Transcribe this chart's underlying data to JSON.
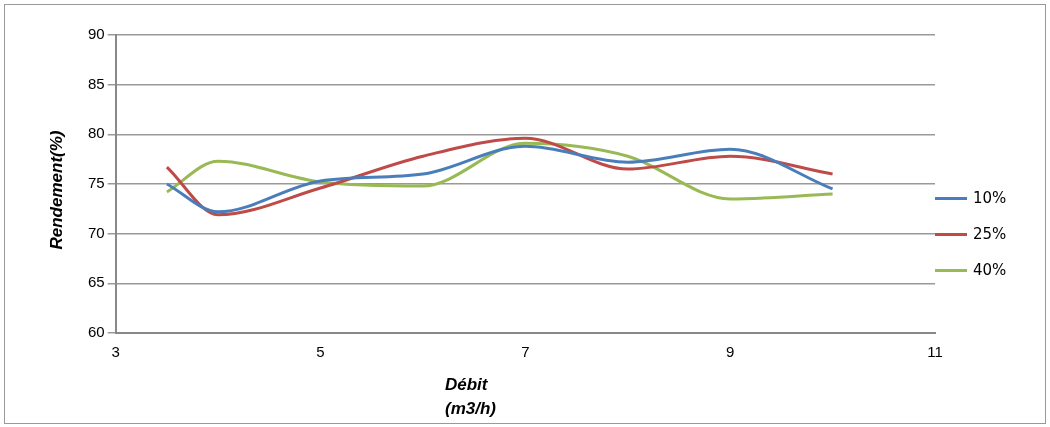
{
  "chart_data": {
    "type": "line",
    "xlabel": "Débit (m3/h)",
    "ylabel": "Rendement(%)",
    "x": [
      3.5,
      4,
      5,
      6,
      7,
      8,
      9,
      10
    ],
    "series": [
      {
        "name": "10%",
        "color": "#4a7ebb",
        "values": [
          75,
          72.2,
          75.3,
          76,
          78.8,
          77.2,
          78.5,
          74.5
        ]
      },
      {
        "name": "25%",
        "color": "#be4b48",
        "values": [
          76.7,
          71.9,
          74.6,
          77.8,
          79.6,
          76.5,
          77.8,
          76
        ]
      },
      {
        "name": "40%",
        "color": "#98b954",
        "values": [
          74.2,
          77.3,
          75.2,
          74.8,
          79.1,
          77.8,
          73.5,
          74
        ]
      }
    ],
    "xlim": [
      3,
      11
    ],
    "xticks": [
      3,
      5,
      7,
      9,
      11
    ],
    "ylim": [
      60,
      90
    ],
    "yticks": [
      60,
      65,
      70,
      75,
      80,
      85,
      90
    ],
    "grid": "y",
    "legend": "right",
    "marker": "none",
    "line_style": "solid"
  }
}
